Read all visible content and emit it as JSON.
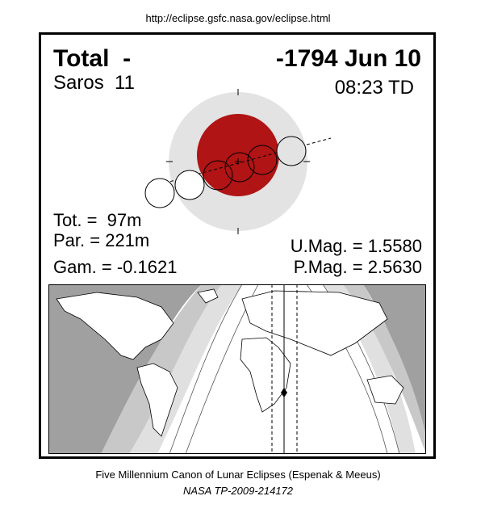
{
  "header": {
    "url": "http://eclipse.gsfc.nasa.gov/eclipse.html"
  },
  "eclipse": {
    "type": "Total  -",
    "date": "-1794 Jun 10",
    "saros": "Saros  11",
    "time": "08:23 TD"
  },
  "stats": {
    "total_duration": "Tot. =  97m",
    "partial_duration": "Par. = 221m",
    "gamma": "Gam. = -0.1621",
    "umbral_magnitude": "U.Mag. = 1.5580",
    "penumbral_magnitude": "P.Mag. = 2.5630"
  },
  "footer": {
    "credit": "Five Millennium Canon of Lunar Eclipses (Espenak & Meeus)",
    "reference": "NASA TP-2009-214172"
  }
}
